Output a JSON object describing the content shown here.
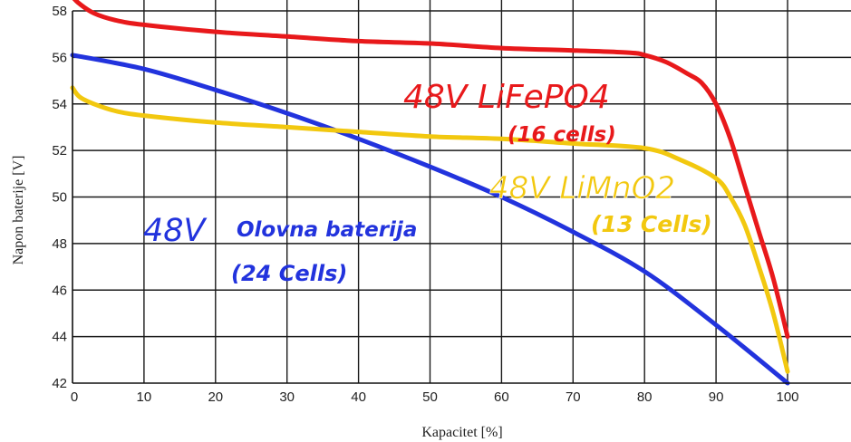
{
  "chart_data": {
    "type": "line",
    "title": "",
    "xlabel": "Kapacitet [%]",
    "ylabel": "Napon baterije [V]",
    "xlim": [
      0,
      100
    ],
    "ylim": [
      42,
      58
    ],
    "x_ticks": [
      0,
      10,
      20,
      30,
      40,
      50,
      60,
      70,
      80,
      90,
      100
    ],
    "y_ticks": [
      42,
      44,
      46,
      48,
      50,
      52,
      54,
      56,
      58
    ],
    "grid": true,
    "series": [
      {
        "color": "#e8191b",
        "points": [
          [
            0,
            58.6
          ],
          [
            1,
            58.3
          ],
          [
            3,
            57.9
          ],
          [
            6,
            57.6
          ],
          [
            10,
            57.4
          ],
          [
            20,
            57.1
          ],
          [
            30,
            56.9
          ],
          [
            40,
            56.7
          ],
          [
            50,
            56.6
          ],
          [
            60,
            56.4
          ],
          [
            70,
            56.3
          ],
          [
            78,
            56.2
          ],
          [
            80,
            56.1
          ],
          [
            83,
            55.8
          ],
          [
            86,
            55.3
          ],
          [
            88,
            54.9
          ],
          [
            90,
            54.0
          ],
          [
            92,
            52.5
          ],
          [
            94,
            50.5
          ],
          [
            96,
            48.5
          ],
          [
            98,
            46.5
          ],
          [
            100,
            44.0
          ]
        ]
      },
      {
        "color": "#f2c80f",
        "points": [
          [
            0,
            54.7
          ],
          [
            1,
            54.3
          ],
          [
            3,
            54.0
          ],
          [
            6,
            53.7
          ],
          [
            10,
            53.5
          ],
          [
            20,
            53.2
          ],
          [
            30,
            53.0
          ],
          [
            40,
            52.8
          ],
          [
            50,
            52.6
          ],
          [
            60,
            52.5
          ],
          [
            70,
            52.3
          ],
          [
            80,
            52.1
          ],
          [
            85,
            51.6
          ],
          [
            90,
            50.8
          ],
          [
            92,
            50.0
          ],
          [
            94,
            48.8
          ],
          [
            96,
            47.0
          ],
          [
            98,
            45.0
          ],
          [
            100,
            42.5
          ]
        ]
      },
      {
        "color": "#2233dd",
        "points": [
          [
            0,
            56.1
          ],
          [
            10,
            55.5
          ],
          [
            20,
            54.6
          ],
          [
            30,
            53.6
          ],
          [
            40,
            52.5
          ],
          [
            50,
            51.3
          ],
          [
            60,
            50.0
          ],
          [
            70,
            48.5
          ],
          [
            80,
            46.8
          ],
          [
            90,
            44.5
          ],
          [
            100,
            42.0
          ]
        ]
      }
    ],
    "annotations": {
      "lifepo4_title": "48V LiFePO4",
      "lifepo4_cells": "(16 cells)",
      "limno2_title": "48V LiMnO2",
      "limno2_cells": "(13 Cells)",
      "lead_prefix": "48V",
      "lead_title": "Olovna baterija",
      "lead_cells": "(24 Cells)"
    }
  }
}
